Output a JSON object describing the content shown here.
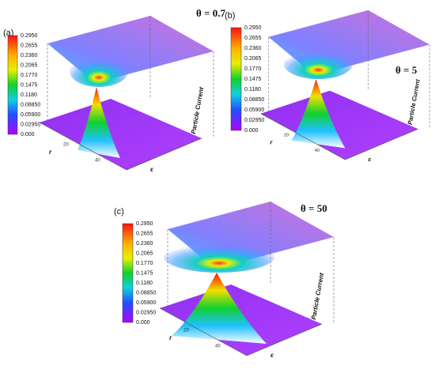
{
  "panels": [
    {
      "label": "(a)",
      "theta": "θ = 0.7",
      "z_label": "Particle Current",
      "r_label": "r",
      "e_label": "ε",
      "ticks": [
        "20",
        "40"
      ],
      "colorbar": [
        "0.2950",
        "0.2655",
        "0.2360",
        "0.2065",
        "0.1770",
        "0.1475",
        "0.1180",
        "0.08850",
        "0.05900",
        "0.02950",
        "0.000"
      ]
    },
    {
      "label": "(b)",
      "theta": "θ = 5",
      "z_label": "Particle Current",
      "r_label": "r",
      "e_label": "ε",
      "ticks": [
        "20",
        "40"
      ],
      "colorbar": [
        "0.2950",
        "0.2655",
        "0.2360",
        "0.2065",
        "0.1770",
        "0.1475",
        "0.1180",
        "0.08850",
        "0.05900",
        "0.02950",
        "0.000"
      ]
    },
    {
      "label": "(c)",
      "theta": "θ = 50",
      "z_label": "Particle Current",
      "r_label": "r",
      "e_label": "ε",
      "ticks": [
        "20",
        "40"
      ],
      "colorbar": [
        "0.2950",
        "0.2655",
        "0.2360",
        "0.2065",
        "0.1770",
        "0.1475",
        "0.1180",
        "0.08850",
        "0.05900",
        "0.02950",
        "0.000"
      ]
    }
  ]
}
